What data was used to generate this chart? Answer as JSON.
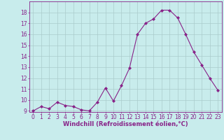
{
  "x": [
    0,
    1,
    2,
    3,
    4,
    5,
    6,
    7,
    8,
    9,
    10,
    11,
    12,
    13,
    14,
    15,
    16,
    17,
    18,
    19,
    20,
    21,
    22,
    23
  ],
  "y": [
    9.0,
    9.4,
    9.2,
    9.8,
    9.5,
    9.4,
    9.1,
    9.0,
    9.8,
    11.1,
    9.9,
    11.3,
    12.9,
    16.0,
    17.0,
    17.4,
    18.2,
    18.2,
    17.5,
    16.0,
    14.4,
    13.2,
    12.0,
    10.9
  ],
  "line_color": "#882288",
  "marker": "D",
  "marker_size": 2.0,
  "bg_color": "#c8ecec",
  "grid_color": "#aacccc",
  "xlabel": "Windchill (Refroidissement éolien,°C)",
  "ylim_min": 9.0,
  "ylim_max": 19.0,
  "xlim_min": -0.5,
  "xlim_max": 23.5,
  "yticks": [
    9,
    10,
    11,
    12,
    13,
    14,
    15,
    16,
    17,
    18
  ],
  "xticks": [
    0,
    1,
    2,
    3,
    4,
    5,
    6,
    7,
    8,
    9,
    10,
    11,
    12,
    13,
    14,
    15,
    16,
    17,
    18,
    19,
    20,
    21,
    22,
    23
  ],
  "tick_color": "#882288",
  "label_fontsize": 6.0,
  "tick_fontsize": 5.5,
  "linewidth": 0.8
}
